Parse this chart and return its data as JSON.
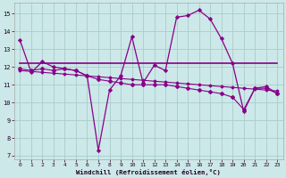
{
  "background_color": "#cce8e8",
  "grid_color": "#aacccc",
  "line_color": "#880088",
  "xlabel": "Windchill (Refroidissement éolien,°C)",
  "ylim": [
    6.8,
    15.6
  ],
  "xlim": [
    -0.5,
    23.5
  ],
  "yticks": [
    7,
    8,
    9,
    10,
    11,
    12,
    13,
    14,
    15
  ],
  "xticks": [
    0,
    1,
    2,
    3,
    4,
    5,
    6,
    7,
    8,
    9,
    10,
    11,
    12,
    13,
    14,
    15,
    16,
    17,
    18,
    19,
    20,
    21,
    22,
    23
  ],
  "s1_x": [
    0,
    1,
    2,
    3,
    4,
    5,
    6,
    7,
    8,
    9,
    10,
    11,
    12,
    13,
    14,
    15,
    16,
    17,
    18,
    19,
    20,
    21,
    22,
    23
  ],
  "s1_y": [
    13.5,
    11.7,
    12.3,
    12.0,
    11.9,
    11.8,
    11.5,
    7.3,
    10.7,
    11.5,
    13.7,
    11.1,
    12.1,
    11.8,
    14.8,
    14.9,
    15.2,
    14.7,
    13.6,
    12.2,
    9.5,
    10.8,
    10.9,
    10.5
  ],
  "s2_x": [
    0,
    1,
    2,
    3,
    4,
    5,
    6,
    7,
    8,
    9,
    10,
    11,
    12,
    13,
    14,
    15,
    16,
    17,
    18,
    19,
    20,
    21,
    22,
    23
  ],
  "s2_y": [
    12.2,
    12.2,
    12.2,
    12.2,
    12.2,
    12.2,
    12.2,
    12.2,
    12.2,
    12.2,
    12.2,
    12.2,
    12.2,
    12.2,
    12.2,
    12.2,
    12.2,
    12.2,
    12.2,
    12.2,
    12.2,
    12.2,
    12.2,
    12.2
  ],
  "s3_x": [
    0,
    1,
    2,
    3,
    4,
    5,
    6,
    7,
    8,
    9,
    10,
    11,
    12,
    13,
    14,
    15,
    16,
    17,
    18,
    19,
    20,
    21,
    22,
    23
  ],
  "s3_y": [
    11.8,
    11.75,
    11.7,
    11.65,
    11.6,
    11.55,
    11.5,
    11.45,
    11.4,
    11.35,
    11.3,
    11.25,
    11.2,
    11.15,
    11.1,
    11.05,
    11.0,
    10.95,
    10.9,
    10.85,
    10.8,
    10.75,
    10.7,
    10.65
  ],
  "s4_x": [
    0,
    1,
    2,
    3,
    4,
    5,
    6,
    7,
    8,
    9,
    10,
    11,
    12,
    13,
    14,
    15,
    16,
    17,
    18,
    19,
    20,
    21,
    22,
    23
  ],
  "s4_y": [
    11.9,
    11.8,
    11.9,
    11.8,
    11.9,
    11.8,
    11.5,
    11.3,
    11.2,
    11.1,
    11.0,
    11.0,
    11.0,
    11.0,
    10.9,
    10.8,
    10.7,
    10.6,
    10.5,
    10.3,
    9.6,
    10.8,
    10.8,
    10.5
  ]
}
